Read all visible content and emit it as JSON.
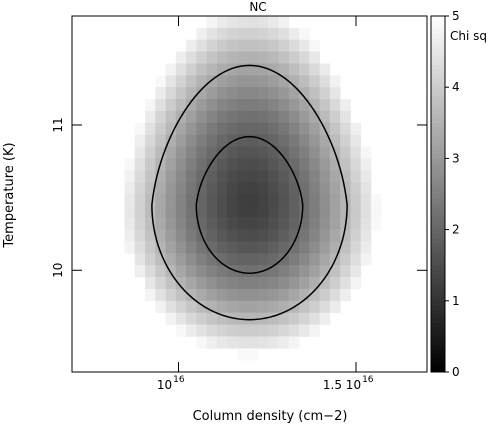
{
  "chart_data": {
    "type": "heatmap",
    "title": "NC",
    "xlabel": "Column density (cm−2)",
    "ylabel": "Temperature (K)",
    "xlim": [
      7000000000000000.0,
      1.7e+16
    ],
    "ylim": [
      9.3,
      11.75
    ],
    "x_ticks": [
      {
        "value": 1e+16,
        "label_main": "10",
        "label_sup": "16"
      },
      {
        "value": 1.5e+16,
        "label_main": "1.5 10",
        "label_sup": "16"
      }
    ],
    "y_ticks": [
      {
        "value": 10,
        "label": "10"
      },
      {
        "value": 11,
        "label": "11"
      }
    ],
    "colorbar": {
      "label": "Chi sq",
      "range": [
        0,
        5
      ],
      "ticks": [
        "0",
        "1",
        "2",
        "3",
        "4",
        "5"
      ],
      "colormap": "gray",
      "min_color": "#000000",
      "max_color": "#ffffff"
    },
    "heatmap": {
      "x_range": [
        7900000000000000.0,
        1.6e+16
      ],
      "y_range": [
        9.3,
        11.75
      ],
      "x_cells": 28,
      "y_cells": 30,
      "center": {
        "x": 1.2e+16,
        "y": 10.45
      },
      "min_value": 1.2,
      "max_value": 4.9
    },
    "contours": [
      {
        "level": "inner",
        "center": {
          "x": 1.2e+16,
          "y": 10.45
        },
        "x_half_width": 1500000000000000.0,
        "y_extent_top": 10.92,
        "y_extent_bottom": 9.98
      },
      {
        "level": "outer",
        "center": {
          "x": 1.2e+16,
          "y": 10.45
        },
        "x_half_width": 2750000000000000.0,
        "y_extent_top": 11.41,
        "y_extent_bottom": 9.66
      }
    ],
    "grid": false,
    "legend": "colorbar-right"
  }
}
